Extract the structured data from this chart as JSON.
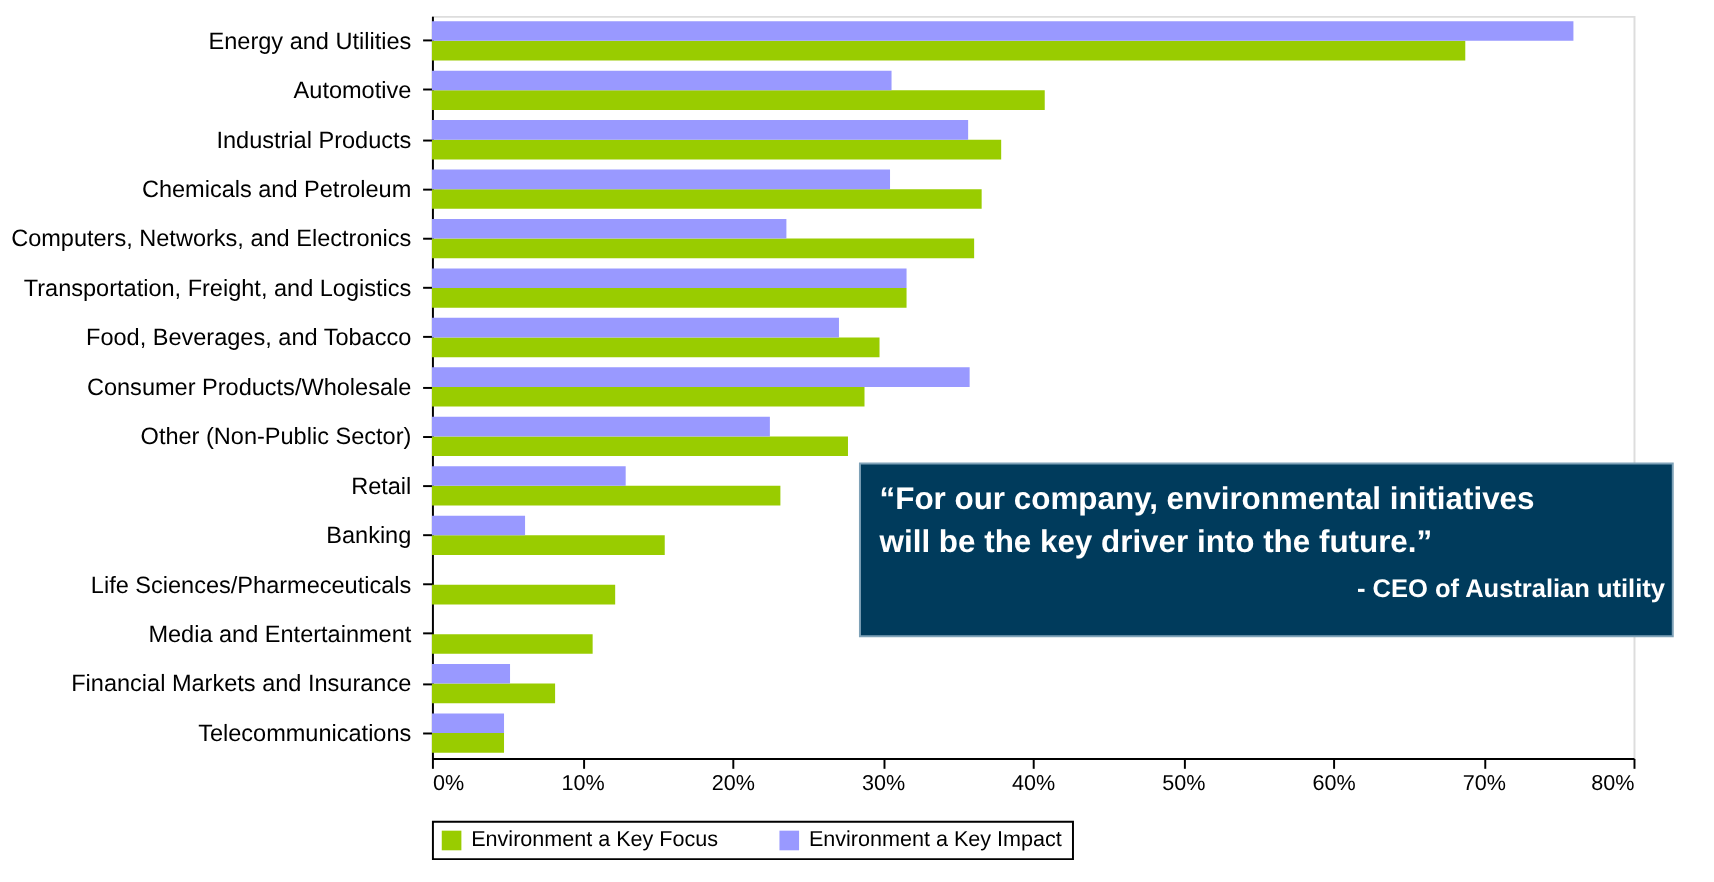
{
  "chart_data": {
    "type": "bar",
    "orientation": "horizontal",
    "categories": [
      "Energy and Utilities",
      "Automotive",
      "Industrial Products",
      "Chemicals and Petroleum",
      "Computers, Networks, and Electronics",
      "Transportation, Freight, and Logistics",
      "Food, Beverages, and Tobacco",
      "Consumer Products/Wholesale",
      "Other (Non-Public Sector)",
      "Retail",
      "Banking",
      "Life Sciences/Pharmeceuticals",
      "Media and Entertainment",
      "Financial Markets and Insurance",
      "Telecommunications"
    ],
    "series": [
      {
        "name": "Environment a Key Focus",
        "color": "#99cc00",
        "values": [
          68.8,
          40.8,
          37.9,
          36.6,
          36.1,
          31.6,
          29.8,
          28.8,
          27.7,
          23.2,
          15.5,
          12.2,
          10.7,
          8.2,
          4.8
        ]
      },
      {
        "name": "Environment a Key Impact",
        "color": "#9999ff",
        "values": [
          76.0,
          30.6,
          35.7,
          30.5,
          23.6,
          31.6,
          27.1,
          35.8,
          22.5,
          12.9,
          6.2,
          null,
          null,
          5.2,
          4.8
        ]
      }
    ],
    "xlim": [
      0,
      80
    ],
    "xticks": [
      {
        "value": 0,
        "label": "0%"
      },
      {
        "value": 10,
        "label": "10%"
      },
      {
        "value": 20,
        "label": "20%"
      },
      {
        "value": 30,
        "label": "30%"
      },
      {
        "value": 40,
        "label": "40%"
      },
      {
        "value": 50,
        "label": "50%"
      },
      {
        "value": 60,
        "label": "60%"
      },
      {
        "value": 70,
        "label": "70%"
      },
      {
        "value": 80,
        "label": "80%"
      }
    ],
    "grid": false,
    "legend": "bottom",
    "annotations": [
      "“For our company, environmental initiatives will be the key driver into the future.”",
      "- CEO of Australian utility"
    ]
  }
}
